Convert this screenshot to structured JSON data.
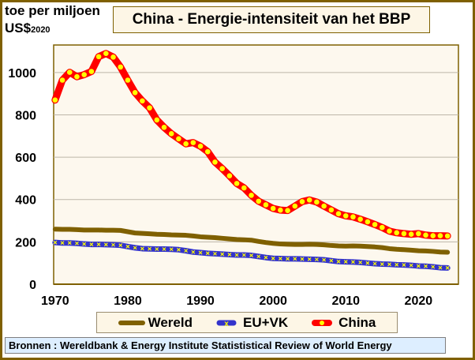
{
  "chart_data": {
    "type": "line",
    "title": "China - Energie-intensiteit van het BBP",
    "ylabel_line1": "toe per miljoen",
    "ylabel_line2": "US$",
    "ylabel_sub": "2020",
    "xlabel": "",
    "ylim": [
      0,
      1130
    ],
    "xlim": [
      1969.8,
      2025.5
    ],
    "yticks": [
      "0",
      "200",
      "400",
      "600",
      "800",
      "1000"
    ],
    "xticks": [
      "1970",
      "1980",
      "1990",
      "2000",
      "2010",
      "2020"
    ],
    "grid": true,
    "legend_position": "bottom",
    "x_start": 1970,
    "series": [
      {
        "name": "Wereld",
        "color": "#7f6000",
        "values": [
          260,
          259,
          259,
          258,
          256,
          256,
          256,
          255,
          255,
          254,
          248,
          242,
          240,
          238,
          236,
          235,
          233,
          232,
          231,
          228,
          224,
          222,
          220,
          217,
          214,
          211,
          210,
          208,
          202,
          197,
          193,
          190,
          189,
          188,
          188,
          189,
          188,
          186,
          183,
          181,
          180,
          181,
          180,
          178,
          176,
          173,
          168,
          165,
          163,
          161,
          158,
          157,
          155,
          152,
          151
        ]
      },
      {
        "name": "EU+VK",
        "color": "#3333cc",
        "marker_color": "#ffff00",
        "values": [
          197,
          195,
          195,
          193,
          190,
          188,
          188,
          187,
          186,
          184,
          178,
          172,
          168,
          167,
          166,
          166,
          165,
          163,
          158,
          152,
          149,
          146,
          144,
          142,
          140,
          138,
          138,
          136,
          131,
          126,
          122,
          121,
          120,
          120,
          119,
          118,
          117,
          115,
          111,
          107,
          106,
          105,
          103,
          100,
          97,
          95,
          94,
          92,
          91,
          89,
          86,
          85,
          82,
          78,
          77
        ]
      },
      {
        "name": "China",
        "color": "#ff0000",
        "marker_color": "#ffff00",
        "values": [
          870,
          964,
          1001,
          980,
          990,
          1005,
          1075,
          1090,
          1073,
          1026,
          964,
          905,
          866,
          833,
          776,
          741,
          711,
          687,
          663,
          669,
          652,
          626,
          577,
          546,
          512,
          476,
          455,
          420,
          392,
          375,
          358,
          350,
          348,
          369,
          390,
          398,
          388,
          369,
          351,
          333,
          323,
          318,
          307,
          295,
          282,
          268,
          251,
          243,
          239,
          236,
          239,
          232,
          229,
          229,
          228
        ]
      }
    ]
  },
  "footer": "Bronnen : Wereldbank & Energy Institute Statististical Review of World Energy"
}
